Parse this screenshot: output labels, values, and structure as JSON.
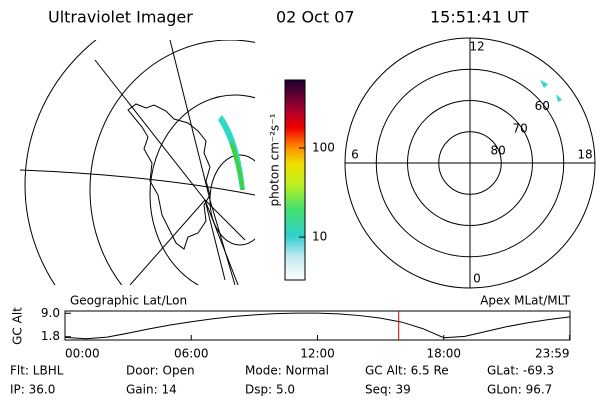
{
  "header": {
    "instrument": "Ultraviolet Imager",
    "date": "02 Oct 07",
    "time": "15:51:41 UT"
  },
  "colorbar": {
    "label": "photon cm⁻²s⁻¹",
    "clim": [
      3.3,
      580
    ],
    "ticks": [
      10,
      100
    ],
    "log": true
  },
  "polar": {
    "mlat_lim": [
      90,
      50
    ],
    "mlat_ticks": [
      60,
      70,
      80
    ],
    "mlt_labels": [
      12,
      6,
      0,
      18
    ]
  },
  "orbit": {
    "left_label": "Geographic Lat/Lon",
    "right_label": "Apex MLat/MLT",
    "ylabel": "GC Alt",
    "xlim": [
      0,
      24
    ],
    "ylim": [
      0.8,
      9.7
    ],
    "yticks": [
      {
        "value": 9,
        "label": "9.0"
      },
      1.8
    ],
    "xticks": [
      {
        "value": 0,
        "label": "00:00"
      },
      {
        "value": 6,
        "label": "06:00"
      },
      {
        "value": 12,
        "label": "12:00"
      },
      {
        "value": 18,
        "label": "18:00"
      },
      {
        "value": 23.98,
        "label": "23:59"
      }
    ],
    "x": [
      0,
      1,
      2,
      3,
      4,
      5,
      6,
      7,
      8,
      9,
      10,
      11,
      12,
      13,
      14,
      15,
      16,
      17,
      18,
      19,
      20,
      21,
      22,
      23,
      24
    ],
    "values": [
      1.6,
      1.2,
      1.7,
      2.9,
      4.2,
      5.4,
      6.4,
      7.3,
      8.0,
      8.5,
      8.9,
      9.05,
      9.05,
      8.8,
      8.3,
      7.5,
      6.3,
      4.3,
      1.5,
      1.9,
      3.4,
      4.9,
      6.1,
      7.1,
      7.9
    ],
    "current_time": 15.86
  },
  "info": [
    [
      "Flt: LBHL",
      "Door: Open",
      "Mode: Normal",
      "GC Alt: 6.5 Re",
      "GLat: -69.3"
    ],
    [
      "IP: 36.0",
      "Gain: 14",
      "Dsp:    5.0",
      "Seq: 39",
      "GLon:  96.7"
    ]
  ]
}
